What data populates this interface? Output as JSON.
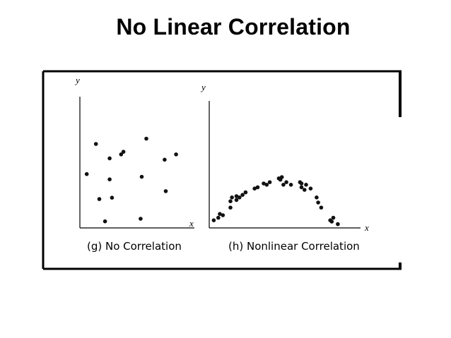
{
  "slide": {
    "title": "No Linear Correlation"
  },
  "chart_data": [
    {
      "type": "scatter",
      "caption": "(g) No Correlation",
      "xlabel": "x",
      "ylabel": "y",
      "grid": false,
      "xlim": [
        0,
        100
      ],
      "ylim": [
        0,
        100
      ],
      "x": [
        6,
        14,
        17,
        22,
        26,
        26,
        28,
        36,
        38,
        53,
        54,
        58,
        74,
        75,
        84
      ],
      "y": [
        41,
        64,
        22,
        5,
        53,
        37,
        23,
        56,
        58,
        7,
        39,
        68,
        52,
        28,
        56
      ]
    },
    {
      "type": "scatter",
      "caption": "(h) Nonlinear Correlation",
      "xlabel": "x",
      "ylabel": "y",
      "grid": false,
      "xlim": [
        0,
        100
      ],
      "ylim": [
        0,
        100
      ],
      "x": [
        3,
        6,
        7,
        9,
        14,
        14,
        15,
        18,
        18,
        20,
        22,
        24,
        30,
        32,
        36,
        38,
        40,
        46,
        47,
        48,
        49,
        51,
        54,
        60,
        61,
        61,
        63,
        64,
        67,
        71,
        72,
        74,
        80,
        81,
        82,
        85
      ],
      "y": [
        6,
        8,
        11,
        10,
        21,
        16,
        24,
        22,
        25,
        24,
        26,
        28,
        31,
        32,
        35,
        34,
        36,
        39,
        38,
        40,
        34,
        36,
        34,
        36,
        32,
        35,
        30,
        34,
        31,
        24,
        20,
        16,
        6,
        5,
        8,
        3
      ]
    }
  ]
}
